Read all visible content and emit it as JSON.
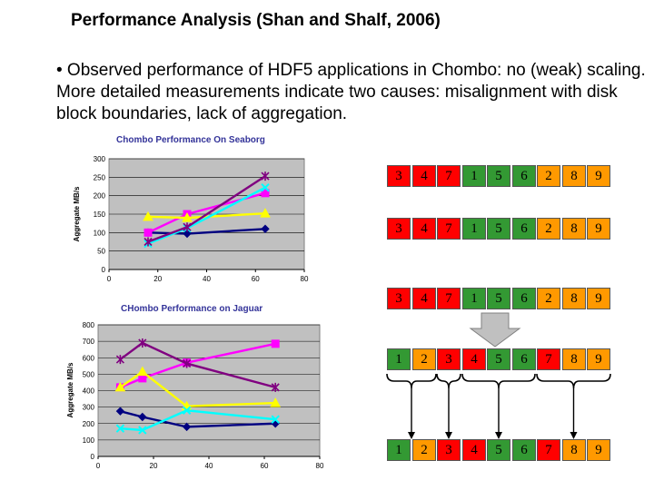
{
  "slide": {
    "title": "Performance Analysis (Shan and Shalf, 2006)",
    "bullet": "• Observed performance of HDF5 applications in Chombo: no (weak) scaling. More detailed measurements indicate two causes: misalignment with disk block boundaries, lack of aggregation."
  },
  "chart_data": [
    {
      "type": "line",
      "title": "Chombo Performance On Seaborg",
      "xlabel": "",
      "ylabel": "Aggregate MB/s",
      "xlim": [
        0,
        80
      ],
      "ylim": [
        0,
        300
      ],
      "xticks": [
        0,
        20,
        40,
        60,
        80
      ],
      "yticks": [
        0,
        50,
        100,
        150,
        200,
        250,
        300
      ],
      "grid": true,
      "series": [
        {
          "color": "#000080",
          "marker": "diamond",
          "x": [
            16,
            32,
            64
          ],
          "y": [
            100,
            97,
            110
          ]
        },
        {
          "color": "#ff00ff",
          "marker": "square",
          "x": [
            16,
            32,
            64
          ],
          "y": [
            100,
            150,
            207
          ]
        },
        {
          "color": "#ffff00",
          "marker": "triangle",
          "x": [
            16,
            32,
            64
          ],
          "y": [
            143,
            140,
            152
          ]
        },
        {
          "color": "#00ffff",
          "marker": "x",
          "x": [
            16,
            32,
            64
          ],
          "y": [
            70,
            112,
            222
          ]
        },
        {
          "color": "#800080",
          "marker": "star",
          "x": [
            16,
            32,
            64
          ],
          "y": [
            75,
            115,
            253
          ]
        }
      ]
    },
    {
      "type": "line",
      "title": "CHombo Performance on Jaguar",
      "xlabel": "",
      "ylabel": "Aggregate MB/s",
      "xlim": [
        0,
        80
      ],
      "ylim": [
        0,
        800
      ],
      "xticks": [
        0,
        20,
        40,
        60,
        80
      ],
      "yticks": [
        0,
        100,
        200,
        300,
        400,
        500,
        600,
        700,
        800
      ],
      "grid": true,
      "series": [
        {
          "color": "#000080",
          "marker": "diamond",
          "x": [
            8,
            16,
            32,
            64
          ],
          "y": [
            275,
            240,
            180,
            200
          ]
        },
        {
          "color": "#ff00ff",
          "marker": "square",
          "x": [
            8,
            16,
            32,
            64
          ],
          "y": [
            420,
            475,
            570,
            685
          ]
        },
        {
          "color": "#ffff00",
          "marker": "triangle",
          "x": [
            8,
            16,
            32,
            64
          ],
          "y": [
            420,
            515,
            305,
            325
          ]
        },
        {
          "color": "#00ffff",
          "marker": "x",
          "x": [
            8,
            16,
            32,
            64
          ],
          "y": [
            170,
            160,
            280,
            225
          ]
        },
        {
          "color": "#800080",
          "marker": "star",
          "x": [
            8,
            16,
            32,
            64
          ],
          "y": [
            590,
            690,
            565,
            420
          ]
        }
      ]
    }
  ],
  "diagram": {
    "colors": {
      "red": "#ff0000",
      "green": "#339933",
      "orange": "#ff9900",
      "arrow": "#c0c0c0"
    },
    "rows": [
      {
        "cells": [
          {
            "v": "3",
            "c": "red"
          },
          {
            "v": "4",
            "c": "red"
          },
          {
            "v": "7",
            "c": "red"
          },
          {
            "v": "1",
            "c": "green"
          },
          {
            "v": "5",
            "c": "green"
          },
          {
            "v": "6",
            "c": "green"
          },
          {
            "v": "2",
            "c": "orange"
          },
          {
            "v": "8",
            "c": "orange"
          },
          {
            "v": "9",
            "c": "orange"
          }
        ]
      },
      {
        "cells": [
          {
            "v": "3",
            "c": "red"
          },
          {
            "v": "4",
            "c": "red"
          },
          {
            "v": "7",
            "c": "red"
          },
          {
            "v": "1",
            "c": "green"
          },
          {
            "v": "5",
            "c": "green"
          },
          {
            "v": "6",
            "c": "green"
          },
          {
            "v": "2",
            "c": "orange"
          },
          {
            "v": "8",
            "c": "orange"
          },
          {
            "v": "9",
            "c": "orange"
          }
        ]
      },
      {
        "cells": [
          {
            "v": "3",
            "c": "red"
          },
          {
            "v": "4",
            "c": "red"
          },
          {
            "v": "7",
            "c": "red"
          },
          {
            "v": "1",
            "c": "green"
          },
          {
            "v": "5",
            "c": "green"
          },
          {
            "v": "6",
            "c": "green"
          },
          {
            "v": "2",
            "c": "orange"
          },
          {
            "v": "8",
            "c": "orange"
          },
          {
            "v": "9",
            "c": "orange"
          }
        ]
      },
      {
        "cells": [
          {
            "v": "1",
            "c": "green"
          },
          {
            "v": "2",
            "c": "orange"
          },
          {
            "v": "3",
            "c": "red"
          },
          {
            "v": "4",
            "c": "red"
          },
          {
            "v": "5",
            "c": "green"
          },
          {
            "v": "6",
            "c": "green"
          },
          {
            "v": "7",
            "c": "red"
          },
          {
            "v": "8",
            "c": "orange"
          },
          {
            "v": "9",
            "c": "orange"
          }
        ]
      },
      {
        "cells": [
          {
            "v": "1",
            "c": "green"
          },
          {
            "v": "2",
            "c": "orange"
          },
          {
            "v": "3",
            "c": "red"
          },
          {
            "v": "4",
            "c": "red"
          },
          {
            "v": "5",
            "c": "green"
          },
          {
            "v": "6",
            "c": "green"
          },
          {
            "v": "7",
            "c": "red"
          },
          {
            "v": "8",
            "c": "orange"
          },
          {
            "v": "9",
            "c": "orange"
          }
        ]
      }
    ]
  }
}
